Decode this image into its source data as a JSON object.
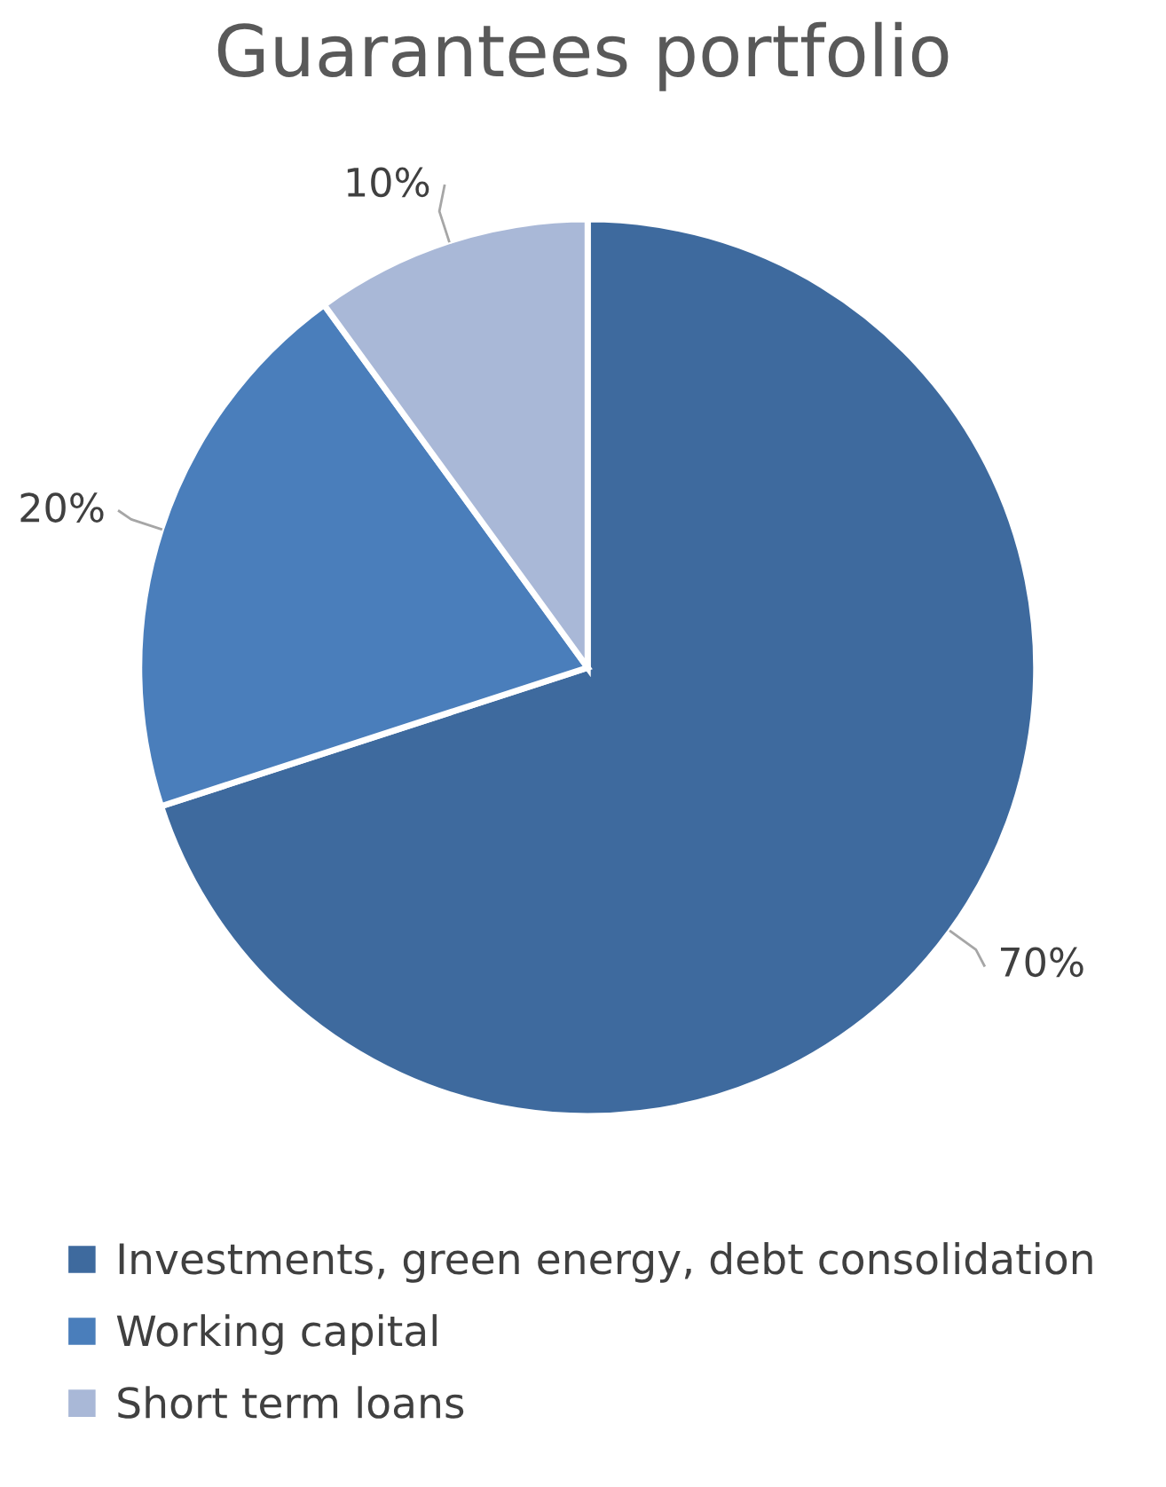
{
  "chart_data": {
    "type": "pie",
    "title": "Guarantees portfolio",
    "categories": [
      "Investments, green energy, debt consolidation",
      "Working capital",
      "Short term loans"
    ],
    "values": [
      70,
      20,
      10
    ],
    "colors": [
      "#3e6a9e",
      "#4a7ebb",
      "#a9b8d7"
    ],
    "value_labels": [
      "70%",
      "20%",
      "10%"
    ],
    "legend": "bottom"
  }
}
